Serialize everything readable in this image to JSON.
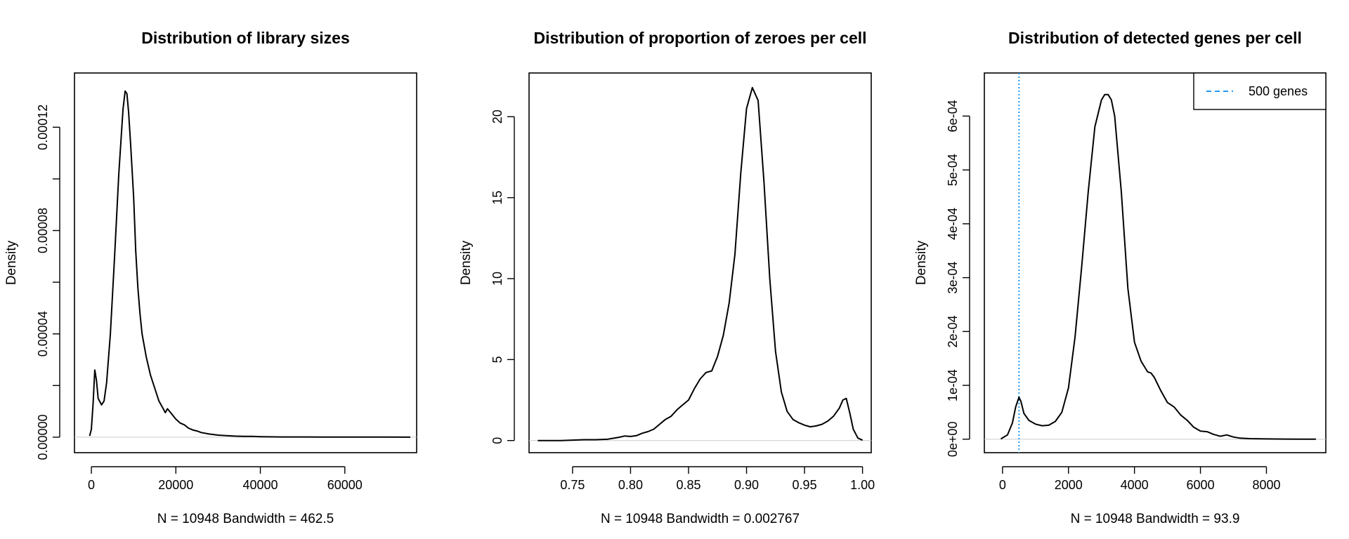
{
  "chart_data": [
    {
      "type": "line",
      "title": "Distribution of library sizes",
      "xlabel": "N = 10948   Bandwidth = 462.5",
      "ylabel": "Density",
      "xlim": [
        -4000,
        77000
      ],
      "ylim": [
        -6e-06,
        0.000141
      ],
      "x_ticks": [
        0,
        20000,
        40000,
        60000
      ],
      "x_tick_labels": [
        "0",
        "20000",
        "40000",
        "60000"
      ],
      "y_ticks": [
        0,
        2e-05,
        4e-05,
        6e-05,
        8e-05,
        0.0001,
        0.00012
      ],
      "y_tick_labels": [
        "0.00000",
        "",
        "0.00004",
        "",
        "0.00008",
        "",
        "0.00012"
      ],
      "series": [
        {
          "x": [
            -400,
            0,
            400,
            800,
            1200,
            1600,
            2400,
            3000,
            3600,
            4500,
            5500,
            6500,
            7500,
            8000,
            8400,
            8800,
            9300,
            10000,
            10500,
            11000,
            11500,
            12000,
            13000,
            14000,
            15000,
            16000,
            17000,
            17500,
            18000,
            19000,
            20000,
            21000,
            22000,
            23000,
            24000,
            25000,
            26000,
            28000,
            30000,
            32000,
            34000,
            36000,
            38000,
            40000,
            45000,
            50000,
            55000,
            60000,
            65000,
            70000,
            75500
          ],
          "y": [
            5e-07,
            3e-06,
            1.3e-05,
            2.6e-05,
            2.2e-05,
            1.5e-05,
            1.25e-05,
            1.4e-05,
            2.1e-05,
            4e-05,
            7e-05,
            0.000102,
            0.000127,
            0.000134,
            0.000133,
            0.000126,
            0.000113,
            9.3e-05,
            7.2e-05,
            5.8e-05,
            4.8e-05,
            4e-05,
            3.1e-05,
            2.4e-05,
            1.9e-05,
            1.4e-05,
            1.1e-05,
            9.5e-06,
            1.1e-05,
            9e-06,
            7e-06,
            5.5e-06,
            4.8e-06,
            3.5e-06,
            2.8e-06,
            2.4e-06,
            1.8e-06,
            1.2e-06,
            8e-07,
            6e-07,
            4e-07,
            3e-07,
            3e-07,
            2e-07,
            1e-07,
            1e-07,
            5e-08,
            5e-08,
            3e-08,
            2e-08,
            0.0
          ]
        }
      ],
      "grid": false
    },
    {
      "type": "line",
      "title": "Distribution of proportion of zeroes per cell",
      "xlabel": "N = 10948   Bandwidth = 0.002767",
      "ylabel": "Density",
      "xlim": [
        0.7125,
        1.0075
      ],
      "ylim": [
        -0.75,
        22.7
      ],
      "x_ticks": [
        0.75,
        0.8,
        0.85,
        0.9,
        0.95,
        1.0
      ],
      "x_tick_labels": [
        "0.75",
        "0.80",
        "0.85",
        "0.90",
        "0.95",
        "1.00"
      ],
      "y_ticks": [
        0,
        5,
        10,
        15,
        20
      ],
      "y_tick_labels": [
        "0",
        "5",
        "10",
        "15",
        "20"
      ],
      "series": [
        {
          "x": [
            0.72,
            0.74,
            0.76,
            0.77,
            0.78,
            0.79,
            0.795,
            0.8,
            0.805,
            0.81,
            0.815,
            0.82,
            0.825,
            0.83,
            0.835,
            0.84,
            0.845,
            0.85,
            0.855,
            0.86,
            0.865,
            0.87,
            0.875,
            0.88,
            0.885,
            0.89,
            0.895,
            0.9,
            0.905,
            0.91,
            0.915,
            0.92,
            0.925,
            0.93,
            0.935,
            0.94,
            0.945,
            0.95,
            0.955,
            0.96,
            0.965,
            0.97,
            0.975,
            0.98,
            0.983,
            0.986,
            0.989,
            0.992,
            0.996,
            1.0
          ],
          "y": [
            0.0,
            0.0,
            0.05,
            0.05,
            0.08,
            0.2,
            0.28,
            0.25,
            0.3,
            0.45,
            0.55,
            0.7,
            1.0,
            1.3,
            1.5,
            1.9,
            2.2,
            2.5,
            3.2,
            3.8,
            4.2,
            4.3,
            5.2,
            6.5,
            8.5,
            11.5,
            16.5,
            20.5,
            21.8,
            21.0,
            16.0,
            10.0,
            5.5,
            3.0,
            1.8,
            1.3,
            1.1,
            0.95,
            0.85,
            0.9,
            1.0,
            1.2,
            1.5,
            2.0,
            2.5,
            2.6,
            1.7,
            0.7,
            0.15,
            0.02
          ]
        }
      ],
      "grid": false
    },
    {
      "type": "line",
      "title": "Distribution of detected genes per cell",
      "xlabel": "N = 10948   Bandwidth = 93.9",
      "ylabel": "Density",
      "xlim": [
        -550,
        9800
      ],
      "ylim": [
        -2.5e-05,
        0.00068
      ],
      "x_ticks": [
        0,
        2000,
        4000,
        6000,
        8000
      ],
      "x_tick_labels": [
        "0",
        "2000",
        "4000",
        "6000",
        "8000"
      ],
      "y_ticks": [
        0,
        0.0001,
        0.0002,
        0.0003,
        0.0004,
        0.0005,
        0.0006
      ],
      "y_tick_labels": [
        "0e+00",
        "1e-04",
        "2e-04",
        "3e-04",
        "4e-04",
        "5e-04",
        "6e-04"
      ],
      "series": [
        {
          "x": [
            -50,
            150,
            300,
            400,
            500,
            560,
            650,
            800,
            1000,
            1200,
            1400,
            1600,
            1800,
            2000,
            2200,
            2400,
            2600,
            2800,
            3000,
            3100,
            3200,
            3300,
            3400,
            3600,
            3800,
            4000,
            4200,
            4400,
            4500,
            4600,
            4800,
            5000,
            5200,
            5400,
            5600,
            5800,
            6000,
            6200,
            6400,
            6600,
            6800,
            7000,
            7200,
            7500,
            8000,
            8500,
            9000,
            9500
          ],
          "y": [
            5e-07,
            8e-06,
            3e-05,
            6e-05,
            7.8e-05,
            7e-05,
            4.8e-05,
            3.5e-05,
            2.8e-05,
            2.5e-05,
            2.6e-05,
            3.3e-05,
            5e-05,
            9.5e-05,
            0.00019,
            0.00032,
            0.00046,
            0.00058,
            0.00063,
            0.00064,
            0.00064,
            0.00063,
            0.0006,
            0.00046,
            0.00028,
            0.00018,
            0.000145,
            0.000125,
            0.000123,
            0.000115,
            9e-05,
            6.8e-05,
            6e-05,
            4.5e-05,
            3.5e-05,
            2.2e-05,
            1.5e-05,
            1.4e-05,
            9e-06,
            5.5e-06,
            8e-06,
            4e-06,
            2e-06,
            1e-06,
            5e-07,
            3e-07,
            1e-07,
            0.0
          ]
        }
      ],
      "reference_line": {
        "x": 500,
        "color": "#2196F3",
        "style": "dotted"
      },
      "legend": {
        "position": "top-right",
        "entries": [
          {
            "label": "500 genes",
            "color": "#2196F3",
            "style": "dashed"
          }
        ]
      },
      "grid": false
    }
  ]
}
